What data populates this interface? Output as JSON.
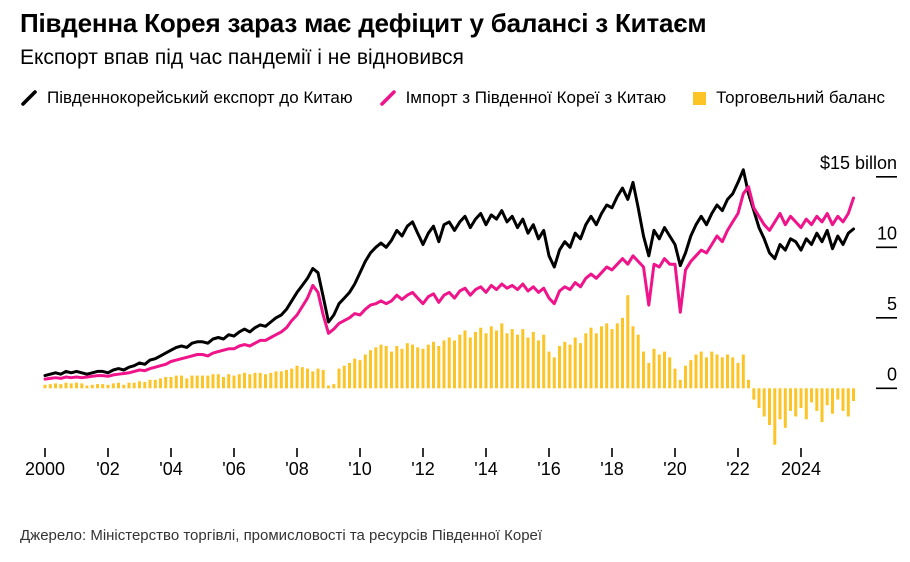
{
  "header": {
    "title": "Південна Корея зараз має дефіцит у балансі з Китаєм",
    "subtitle": "Експорт впав під час пандемії і не відновився"
  },
  "legend": [
    {
      "label": "Південнокорейський експорт до Китаю",
      "marker": "line",
      "color": "#000000"
    },
    {
      "label": "Імпорт з Південної Кореї з Китаю",
      "marker": "line",
      "color": "#f0148b"
    },
    {
      "label": "Торговельний баланс",
      "marker": "square",
      "color": "#fcc427"
    }
  ],
  "source": "Джерело: Міністерство торгівлі, промисловості та ресурсів Південної Кореї",
  "chart_data": {
    "type": "line+bar",
    "title": "Південна Корея зараз має дефіцит у балансі з Китаєм",
    "subtitle": "Експорт впав під час пандемії і не відновився",
    "units": "$ billion per month",
    "x_start_year": 2000,
    "x_points_per_year": 6,
    "xlim": [
      2000,
      2025.7
    ],
    "ylim": [
      -4.5,
      16
    ],
    "grid": false,
    "legend_position": "top",
    "y_ticks": [
      {
        "value": 15,
        "label": "$15 billon"
      },
      {
        "value": 10,
        "label": "10"
      },
      {
        "value": 5,
        "label": "5"
      },
      {
        "value": 0,
        "label": "0"
      }
    ],
    "x_ticks": [
      {
        "year": 2000,
        "label": "2000"
      },
      {
        "year": 2002,
        "label": "'02"
      },
      {
        "year": 2004,
        "label": "'04"
      },
      {
        "year": 2006,
        "label": "'06"
      },
      {
        "year": 2008,
        "label": "'08"
      },
      {
        "year": 2010,
        "label": "'10"
      },
      {
        "year": 2012,
        "label": "'12"
      },
      {
        "year": 2014,
        "label": "'14"
      },
      {
        "year": 2016,
        "label": "'16"
      },
      {
        "year": 2018,
        "label": "'18"
      },
      {
        "year": 2020,
        "label": "'20"
      },
      {
        "year": 2022,
        "label": "'22"
      },
      {
        "year": 2024,
        "label": "2024"
      }
    ],
    "series": [
      {
        "name": "Південнокорейський експорт до Китаю",
        "type": "line",
        "color": "#000000",
        "values": [
          0.9,
          1.0,
          1.1,
          1.0,
          1.2,
          1.1,
          1.2,
          1.1,
          1.0,
          1.1,
          1.2,
          1.2,
          1.1,
          1.3,
          1.4,
          1.3,
          1.5,
          1.6,
          1.8,
          1.7,
          2.0,
          2.1,
          2.3,
          2.5,
          2.7,
          2.9,
          3.0,
          2.9,
          3.2,
          3.3,
          3.3,
          3.2,
          3.5,
          3.6,
          3.5,
          3.8,
          3.7,
          4.0,
          4.2,
          4.0,
          4.3,
          4.5,
          4.4,
          4.7,
          5.0,
          5.2,
          5.6,
          6.2,
          6.8,
          7.3,
          7.8,
          8.5,
          8.2,
          6.5,
          4.7,
          5.2,
          6.0,
          6.4,
          6.8,
          7.4,
          8.2,
          9.0,
          9.6,
          10.0,
          10.3,
          10.0,
          10.5,
          11.2,
          10.8,
          11.5,
          11.8,
          11.0,
          10.2,
          11.0,
          11.5,
          10.4,
          11.6,
          11.8,
          11.2,
          11.8,
          12.2,
          11.4,
          12.0,
          12.4,
          11.6,
          12.3,
          12.0,
          12.6,
          11.8,
          12.2,
          11.4,
          12.0,
          11.0,
          11.6,
          10.6,
          11.2,
          9.4,
          8.6,
          9.8,
          10.4,
          10.0,
          11.0,
          10.6,
          11.6,
          12.2,
          11.6,
          12.4,
          13.0,
          12.8,
          13.6,
          14.2,
          13.4,
          14.6,
          12.8,
          10.8,
          9.4,
          11.2,
          10.6,
          11.4,
          10.8,
          10.2,
          8.7,
          9.6,
          10.8,
          11.6,
          12.2,
          11.6,
          12.4,
          13.0,
          12.6,
          13.4,
          13.8,
          14.6,
          15.5,
          13.8,
          12.6,
          11.4,
          10.6,
          9.6,
          9.2,
          10.2,
          9.8,
          10.6,
          10.4,
          9.8,
          10.6,
          10.2,
          11.0,
          10.4,
          11.2,
          9.9,
          10.8,
          10.2,
          11.0,
          11.3
        ]
      },
      {
        "name": "Імпорт з Південної Кореї з Китаю",
        "type": "line",
        "color": "#f0148b",
        "values": [
          0.65,
          0.7,
          0.75,
          0.7,
          0.8,
          0.75,
          0.8,
          0.75,
          0.8,
          0.85,
          0.9,
          0.9,
          0.85,
          0.95,
          1.0,
          1.05,
          1.1,
          1.2,
          1.3,
          1.25,
          1.4,
          1.5,
          1.6,
          1.7,
          1.9,
          2.0,
          2.1,
          2.2,
          2.3,
          2.4,
          2.4,
          2.3,
          2.5,
          2.6,
          2.7,
          2.8,
          2.8,
          3.0,
          3.1,
          3.0,
          3.2,
          3.4,
          3.4,
          3.6,
          3.8,
          4.0,
          4.3,
          4.8,
          5.2,
          5.8,
          6.4,
          7.3,
          6.8,
          5.2,
          3.9,
          4.2,
          4.6,
          4.8,
          5.0,
          5.3,
          5.2,
          5.6,
          5.9,
          6.0,
          6.2,
          6.0,
          6.2,
          6.6,
          6.3,
          6.6,
          6.8,
          6.4,
          6.0,
          6.5,
          6.7,
          6.1,
          6.6,
          6.8,
          6.4,
          6.9,
          7.1,
          6.6,
          7.0,
          7.2,
          6.8,
          7.3,
          7.0,
          7.4,
          7.1,
          7.3,
          7.0,
          7.4,
          6.9,
          7.2,
          6.8,
          7.1,
          6.4,
          6.0,
          6.9,
          7.2,
          7.0,
          7.5,
          7.2,
          7.8,
          8.1,
          7.8,
          8.2,
          8.6,
          8.4,
          8.8,
          9.2,
          8.8,
          9.4,
          9.0,
          8.6,
          5.9,
          8.8,
          8.6,
          9.2,
          8.8,
          8.8,
          5.4,
          8.4,
          9.0,
          9.4,
          9.8,
          9.6,
          10.2,
          10.8,
          10.4,
          11.2,
          11.8,
          12.4,
          13.8,
          14.3,
          12.8,
          12.2,
          11.6,
          11.2,
          11.8,
          12.4,
          11.6,
          12.2,
          11.8,
          11.4,
          12.0,
          11.6,
          12.2,
          11.8,
          12.4,
          11.6,
          12.2,
          11.8,
          12.4,
          13.5
        ]
      },
      {
        "name": "Торговельний баланс",
        "type": "bar",
        "color": "#fcc427",
        "values": [
          0.25,
          0.3,
          0.35,
          0.3,
          0.4,
          0.35,
          0.4,
          0.35,
          0.2,
          0.25,
          0.3,
          0.3,
          0.25,
          0.35,
          0.4,
          0.25,
          0.4,
          0.4,
          0.5,
          0.45,
          0.6,
          0.6,
          0.7,
          0.8,
          0.8,
          0.9,
          0.9,
          0.7,
          0.9,
          0.9,
          0.9,
          0.9,
          1.0,
          1.0,
          0.8,
          1.0,
          0.9,
          1.0,
          1.1,
          1.0,
          1.1,
          1.1,
          1.0,
          1.1,
          1.2,
          1.2,
          1.3,
          1.4,
          1.6,
          1.5,
          1.4,
          1.2,
          1.4,
          1.3,
          0.2,
          0.3,
          1.4,
          1.6,
          1.8,
          2.1,
          2.0,
          2.4,
          2.7,
          2.9,
          3.1,
          3.0,
          2.6,
          3.0,
          2.8,
          3.2,
          3.1,
          2.9,
          2.8,
          3.1,
          3.3,
          3.0,
          3.4,
          3.6,
          3.4,
          3.8,
          4.1,
          3.6,
          4.0,
          4.3,
          3.9,
          4.4,
          4.1,
          4.6,
          3.9,
          4.2,
          3.8,
          4.2,
          3.6,
          4.0,
          3.4,
          3.8,
          2.6,
          2.2,
          3.0,
          3.3,
          3.1,
          3.6,
          3.2,
          3.9,
          4.3,
          3.9,
          4.4,
          4.6,
          4.2,
          4.6,
          5.0,
          6.6,
          4.4,
          3.8,
          2.6,
          1.8,
          2.8,
          2.4,
          2.6,
          2.2,
          1.4,
          0.6,
          1.6,
          2.0,
          2.4,
          2.6,
          2.2,
          2.6,
          2.4,
          2.2,
          2.4,
          2.2,
          1.8,
          2.4,
          0.6,
          -0.8,
          -1.4,
          -2.0,
          -2.6,
          -4.0,
          -2.2,
          -2.8,
          -1.6,
          -2.0,
          -1.4,
          -2.2,
          -1.0,
          -1.6,
          -2.4,
          -1.2,
          -1.8,
          -0.8,
          -1.6,
          -2.0,
          -0.9
        ]
      }
    ]
  }
}
